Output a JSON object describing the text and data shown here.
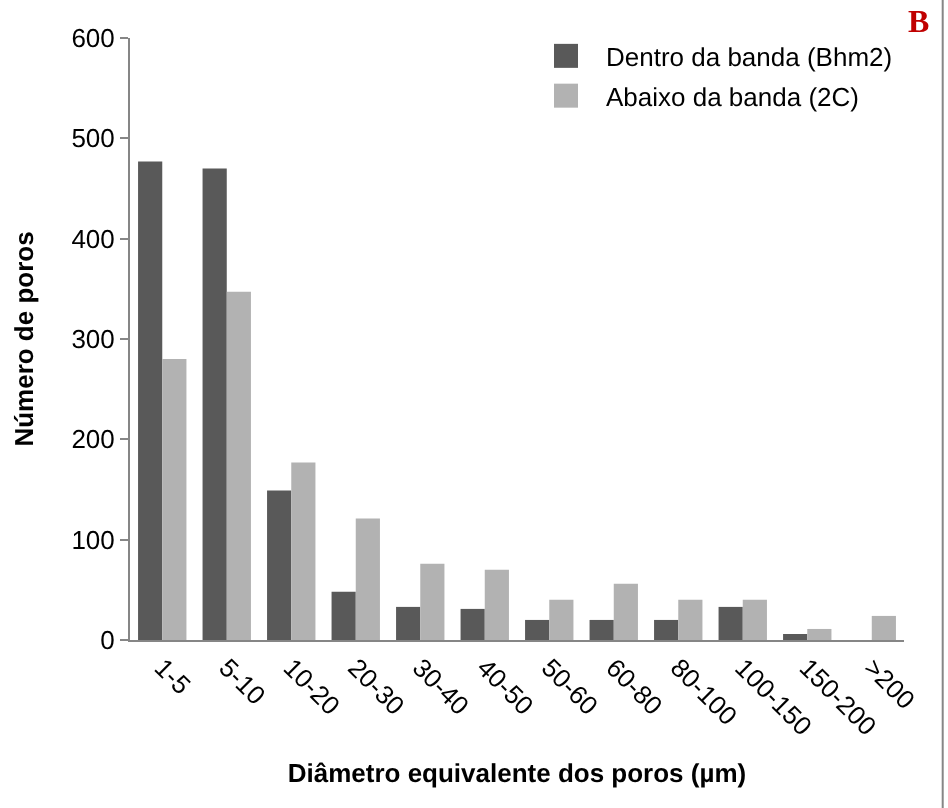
{
  "chart_data": {
    "type": "bar",
    "xlabel": "Diâmetro equivalente dos poros (µm)",
    "ylabel": "Número de poros",
    "categories": [
      "1-5",
      "5-10",
      "10-20",
      "20-30",
      "30-40",
      "40-50",
      "50-60",
      "60-80",
      "80-100",
      "100-150",
      "150-200",
      ">200"
    ],
    "series": [
      {
        "name": "Dentro da banda (Bhm2)",
        "color": "#595959",
        "values": [
          477,
          470,
          149,
          48,
          33,
          31,
          20,
          20,
          20,
          33,
          6,
          0
        ]
      },
      {
        "name": "Abaixo da banda (2C)",
        "color": "#b2b2b2",
        "values": [
          280,
          347,
          177,
          121,
          76,
          70,
          40,
          56,
          40,
          40,
          11,
          24
        ]
      }
    ],
    "ylim": [
      0,
      600
    ],
    "yticks": [
      0,
      100,
      200,
      300,
      400,
      500,
      600
    ],
    "legend": "top right",
    "annotations": [
      "B"
    ]
  }
}
